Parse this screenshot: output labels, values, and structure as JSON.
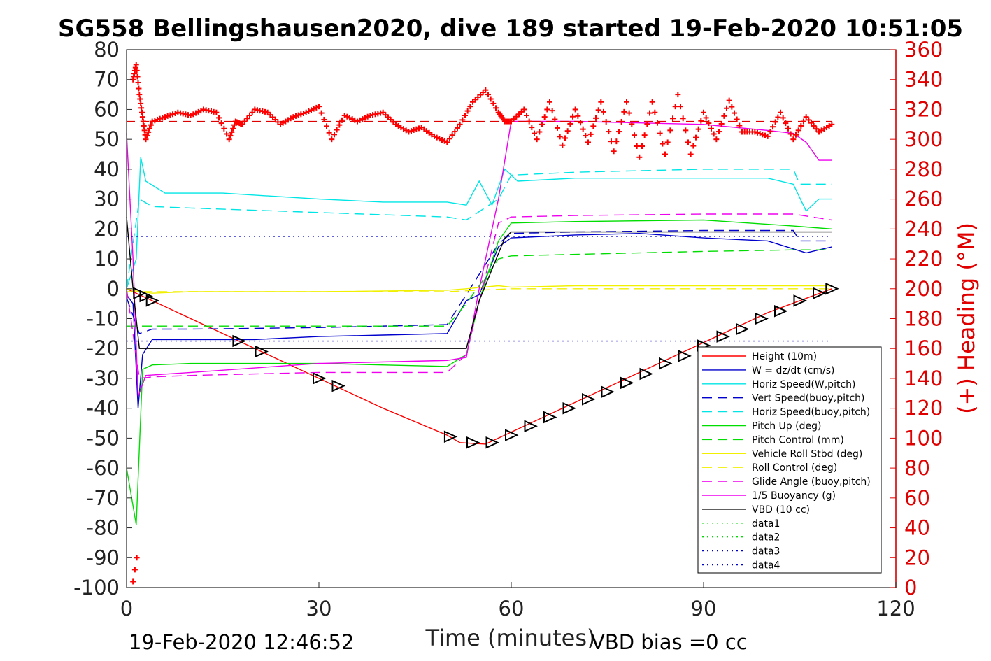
{
  "colors": {
    "heading": "#ff0000",
    "height": "#ff0000",
    "w": "#0000cc",
    "horiz_speed": "#00e5e5",
    "pitch": "#00dd00",
    "roll": "#f0f000",
    "glide": "#ee00ee",
    "vbd": "#000000",
    "axis": "#262626",
    "right_axis": "#e00000"
  },
  "chart_data": {
    "type": "line",
    "title": "SG558 Bellingshausen2020, dive 189 started 19-Feb-2020 10:51:05",
    "xlabel": "Time (minutes)",
    "ylabel_right": "(+) Heading (°M)",
    "xlim": [
      0,
      120
    ],
    "ylim": [
      -100,
      80
    ],
    "ylim_right": [
      0,
      360
    ],
    "x_ticks": [
      "0",
      "30",
      "60",
      "90",
      "120"
    ],
    "y_ticks": [
      "80",
      "70",
      "60",
      "50",
      "40",
      "30",
      "20",
      "10",
      "0",
      "-10",
      "-20",
      "-30",
      "-40",
      "-50",
      "-60",
      "-70",
      "-80",
      "-90",
      "-100"
    ],
    "y_ticks_right": [
      "360",
      "340",
      "320",
      "300",
      "280",
      "260",
      "240",
      "220",
      "200",
      "180",
      "160",
      "140",
      "120",
      "100",
      "80",
      "60",
      "40",
      "20",
      "0"
    ],
    "legend_position": "bottom-right",
    "footer_left": "19-Feb-2020 12:46:52",
    "footer_right": "VBD bias =0 cc",
    "series": [
      {
        "name": "Height (10m)",
        "style": "solid",
        "color": "#ff0000",
        "x": [
          0,
          1.5,
          4,
          17,
          30,
          40,
          50,
          52,
          56,
          60,
          70,
          80,
          90,
          100,
          110
        ],
        "y": [
          0,
          -1.5,
          -4,
          -17,
          -30,
          -40,
          -49,
          -51.5,
          -52,
          -48,
          -38,
          -28,
          -18,
          -8,
          0
        ]
      },
      {
        "name": "W = dz/dt (cm/s)",
        "style": "solid",
        "color": "#0000cc",
        "x": [
          0,
          1,
          1.8,
          2.5,
          4,
          10,
          20,
          30,
          40,
          50,
          53,
          55,
          58,
          60,
          70,
          80,
          90,
          100,
          106,
          108,
          110
        ],
        "y": [
          -2,
          -5,
          -40,
          -22,
          -17,
          -17,
          -17,
          -16,
          -15.5,
          -15,
          -4,
          -2,
          14,
          17,
          18,
          18.5,
          17,
          16,
          12,
          13,
          14
        ]
      },
      {
        "name": "Horiz Speed(W,pitch)",
        "style": "solid",
        "color": "#00e5e5",
        "x": [
          0,
          1.5,
          2.2,
          3,
          6,
          15,
          30,
          40,
          50,
          53,
          55,
          57,
          59,
          61,
          70,
          80,
          90,
          100,
          104,
          106,
          108,
          110
        ],
        "y": [
          0,
          10,
          44,
          36,
          32,
          32,
          30,
          29,
          29,
          28,
          36,
          28,
          40,
          36,
          37,
          37,
          37,
          37,
          35,
          26,
          30,
          30
        ]
      },
      {
        "name": "Vert Speed(buoy,pitch)",
        "style": "dashed",
        "color": "#0000cc",
        "x": [
          0,
          2,
          4,
          10,
          30,
          50,
          53,
          58,
          60,
          70,
          90,
          104,
          105,
          110
        ],
        "y": [
          -3,
          -15,
          -13.5,
          -13.5,
          -13,
          -12,
          -2,
          15,
          18.5,
          19,
          19.5,
          19.5,
          16,
          16
        ]
      },
      {
        "name": "Horiz Speed(buoy,pitch)",
        "style": "dashed",
        "color": "#00e5e5",
        "x": [
          0,
          2,
          4,
          10,
          30,
          50,
          53,
          58,
          60,
          70,
          90,
          104,
          105,
          110
        ],
        "y": [
          0,
          30,
          27.5,
          27,
          25.5,
          24,
          23,
          30,
          38,
          39,
          40,
          40,
          35,
          35
        ]
      },
      {
        "name": "Pitch Up (deg)",
        "style": "solid",
        "color": "#00dd00",
        "x": [
          0,
          1.5,
          2.5,
          4,
          10,
          30,
          50,
          53,
          55,
          58,
          60,
          70,
          90,
          104,
          110
        ],
        "y": [
          -60,
          -79,
          -27,
          -25.5,
          -25,
          -25,
          -26,
          -22,
          -4,
          16,
          22,
          22.5,
          23,
          21,
          20
        ]
      },
      {
        "name": "Pitch Control (mm)",
        "style": "dashed",
        "color": "#00dd00",
        "x": [
          0,
          4,
          10,
          30,
          50,
          53,
          58,
          60,
          70,
          90,
          104,
          110
        ],
        "y": [
          -12.5,
          -12.5,
          -12.5,
          -12.5,
          -12.5,
          -5,
          10,
          11,
          11.5,
          12.5,
          13,
          13
        ]
      },
      {
        "name": "Vehicle Roll Stbd (deg)",
        "style": "solid",
        "color": "#f0f000",
        "x": [
          0,
          2,
          4,
          10,
          30,
          50,
          53,
          58,
          60,
          70,
          90,
          110
        ],
        "y": [
          0,
          -1,
          -1.5,
          -1,
          -1,
          -0.5,
          0,
          1,
          0.5,
          1,
          1,
          1
        ]
      },
      {
        "name": "Roll Control (deg)",
        "style": "dashed",
        "color": "#f0f000",
        "x": [
          0,
          4,
          30,
          50,
          60,
          90,
          110
        ],
        "y": [
          -1,
          -1,
          -1,
          -1,
          0,
          0,
          0
        ]
      },
      {
        "name": "Glide Angle (buoy,pitch)",
        "style": "dashed",
        "color": "#ee00ee",
        "x": [
          0,
          2,
          4,
          10,
          30,
          50,
          53,
          58,
          60,
          70,
          90,
          104,
          110
        ],
        "y": [
          0,
          -30,
          -29.5,
          -29,
          -28,
          -28,
          -22,
          22,
          24,
          24.5,
          25,
          25,
          23
        ]
      },
      {
        "name": "1/5 Buoyancy (g)",
        "style": "solid",
        "color": "#ee00ee",
        "x": [
          0,
          1,
          1.8,
          3,
          10,
          30,
          50,
          53,
          55,
          58,
          60,
          70,
          80,
          90,
          100,
          104,
          106,
          108,
          110
        ],
        "y": [
          52,
          10,
          -36,
          -29,
          -28,
          -25,
          -24,
          -23,
          0,
          30,
          56,
          56,
          55.5,
          55,
          53,
          52,
          49,
          43,
          43
        ]
      },
      {
        "name": "VBD (10 cc)",
        "style": "solid",
        "color": "#000000",
        "x": [
          0,
          1,
          2,
          50,
          53,
          55,
          59,
          60,
          110
        ],
        "y": [
          24,
          0,
          -20,
          -20,
          -20,
          -4,
          17,
          19,
          19
        ]
      },
      {
        "name": "data1",
        "style": "dotted",
        "color": "#00dd00",
        "x": [],
        "y": []
      },
      {
        "name": "data2",
        "style": "dotted",
        "color": "#00dd00",
        "x": [],
        "y": []
      },
      {
        "name": "data3",
        "style": "dotted",
        "color": "#0000cc",
        "x": [],
        "y": []
      },
      {
        "name": "data4",
        "style": "dotted",
        "color": "#0000cc",
        "x": [
          0,
          110,
          0,
          110
        ],
        "y": [
          17.5,
          17.5,
          -17.5,
          -17.5
        ]
      }
    ],
    "heading": {
      "x": [
        1,
        1.5,
        2,
        2.5,
        3,
        4,
        6,
        8,
        10,
        12,
        14,
        16,
        17,
        18,
        20,
        22,
        24,
        26,
        28,
        30,
        32,
        34,
        36,
        38,
        40,
        42,
        44,
        46,
        48,
        50,
        52,
        54,
        56,
        58,
        59,
        60,
        62,
        64,
        66,
        68,
        70,
        72,
        74,
        76,
        78,
        80,
        82,
        84,
        86,
        88,
        90,
        92,
        94,
        96,
        98,
        100,
        102,
        104,
        106,
        108,
        110
      ],
      "y": [
        340,
        350,
        330,
        315,
        300,
        312,
        315,
        318,
        316,
        320,
        318,
        300,
        312,
        310,
        320,
        318,
        310,
        315,
        318,
        322,
        300,
        316,
        312,
        316,
        318,
        310,
        305,
        308,
        302,
        298,
        310,
        325,
        333,
        318,
        312,
        312,
        320,
        300,
        325,
        296,
        320,
        298,
        325,
        292,
        325,
        288,
        325,
        290,
        330,
        290,
        318,
        300,
        326,
        305,
        305,
        302,
        318,
        300,
        315,
        305,
        310
      ],
      "reference": 312,
      "outliers_x": [
        1,
        1.3,
        1.6
      ],
      "outliers_y": [
        4,
        12,
        20
      ]
    },
    "height_markers_x": [
      2,
      3,
      4,
      17.5,
      21,
      30,
      33,
      50.5,
      54,
      57,
      60,
      63,
      66,
      69,
      72,
      75,
      78,
      81,
      84,
      87,
      90,
      93,
      96,
      99,
      102,
      105,
      108,
      110
    ],
    "height_markers_y": [
      -1.5,
      -2.5,
      -4,
      -17.5,
      -21,
      -30,
      -32.5,
      -49.5,
      -51.5,
      -51.5,
      -49,
      -46,
      -43,
      -40,
      -37,
      -34.5,
      -31.5,
      -28.5,
      -25,
      -22.5,
      -19,
      -16,
      -13.5,
      -10,
      -7.5,
      -4,
      -1.5,
      0
    ]
  }
}
